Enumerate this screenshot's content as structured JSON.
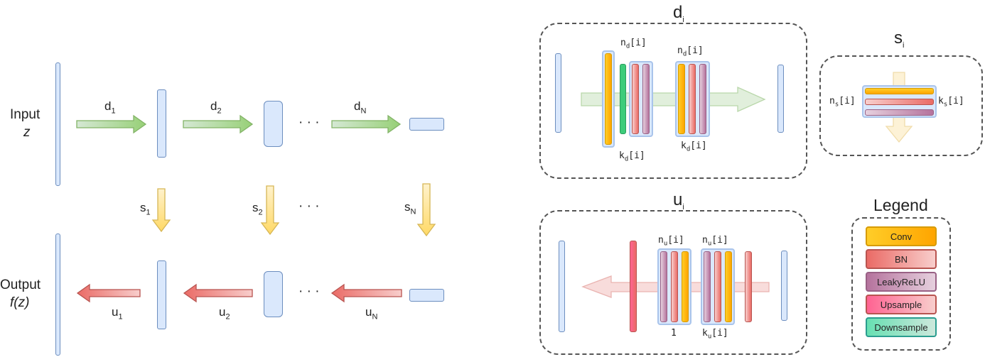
{
  "left": {
    "input_label": "Input",
    "input_var": "z",
    "output_label": "Output",
    "output_var": "f(z)",
    "d_arrows": [
      {
        "base": "d",
        "sub": "1"
      },
      {
        "base": "d",
        "sub": "2"
      },
      {
        "base": "d",
        "sub": "N"
      }
    ],
    "s_arrows": [
      {
        "base": "s",
        "sub": "1"
      },
      {
        "base": "s",
        "sub": "2"
      },
      {
        "base": "s",
        "sub": "N"
      }
    ],
    "u_arrows": [
      {
        "base": "u",
        "sub": "1"
      },
      {
        "base": "u",
        "sub": "2"
      },
      {
        "base": "u",
        "sub": "N"
      }
    ],
    "ellipsis": "· · ·"
  },
  "d_block": {
    "title": {
      "base": "d",
      "sub": "i"
    },
    "n_label": {
      "base": "n",
      "sub": "d",
      "idx": "[i]"
    },
    "k_label": {
      "base": "k",
      "sub": "d",
      "idx": "[i]"
    }
  },
  "s_block": {
    "title": {
      "base": "s",
      "sub": "i"
    },
    "n_label": {
      "base": "n",
      "sub": "s",
      "idx": "[i]"
    },
    "k_label": {
      "base": "k",
      "sub": "s",
      "idx": "[i]"
    }
  },
  "u_block": {
    "title": {
      "base": "u",
      "sub": "i"
    },
    "n_label": {
      "base": "n",
      "sub": "u",
      "idx": "[i]"
    },
    "k_label": {
      "base": "k",
      "sub": "u",
      "idx": "[i]"
    },
    "one_label": "1"
  },
  "legend": {
    "title": "Legend",
    "items": [
      "Conv",
      "BN",
      "LeakyReLU",
      "Upsample",
      "Downsample"
    ]
  },
  "colors": {
    "vector_fill": "#dae8fc",
    "vector_stroke": "#6c8ebf",
    "d_arrow": "#82b366",
    "s_arrow": "#d6b656",
    "u_arrow": "#b85450"
  }
}
